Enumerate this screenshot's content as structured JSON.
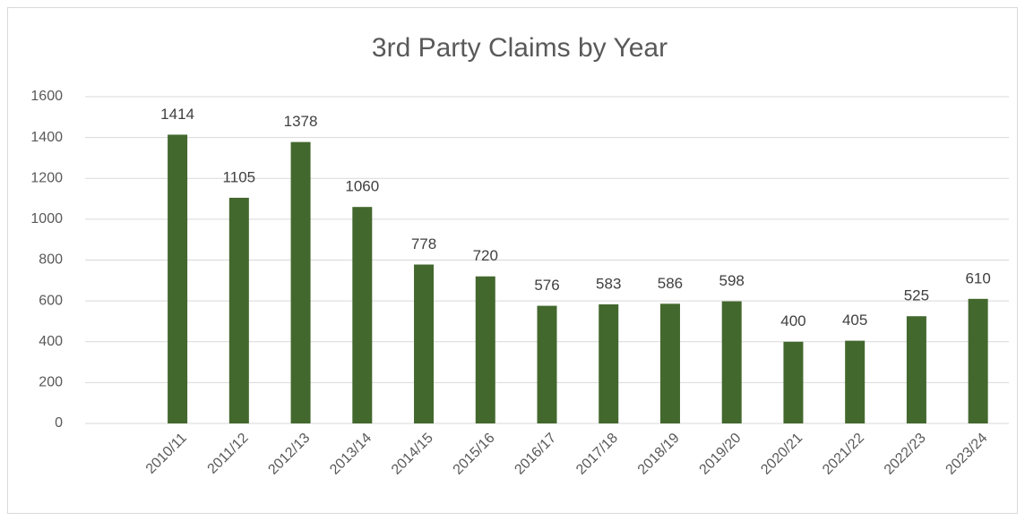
{
  "chart_data": {
    "type": "bar",
    "title": "3rd Party Claims by Year",
    "categories": [
      null,
      "2010/11",
      "2011/12",
      "2012/13",
      "2013/14",
      "2014/15",
      "2015/16",
      "2016/17",
      "2017/18",
      "2018/19",
      "2019/20",
      "2020/21",
      "2021/22",
      "2022/23",
      "2023/24"
    ],
    "values": [
      null,
      1414,
      1105,
      1378,
      1060,
      778,
      720,
      576,
      583,
      586,
      598,
      400,
      405,
      525,
      610
    ],
    "color": "#43682d",
    "ylim": [
      0,
      1600
    ],
    "yticks": [
      0,
      200,
      400,
      600,
      800,
      1000,
      1200,
      1400,
      1600
    ],
    "grid": true
  }
}
